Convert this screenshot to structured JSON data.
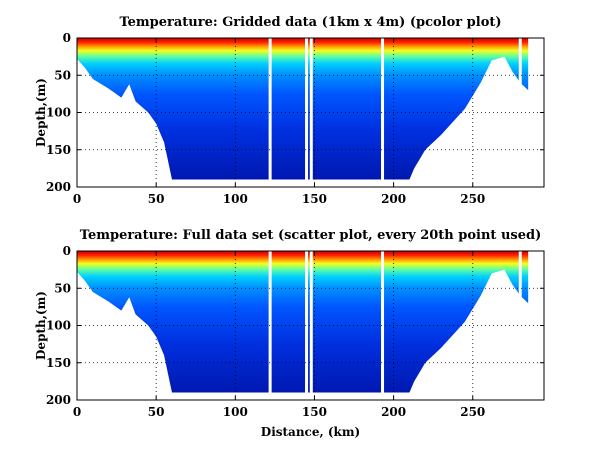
{
  "chart_data": [
    {
      "type": "heatmap",
      "title": "Temperature: Gridded data (1km x 4m) (pcolor plot)",
      "xlabel": "",
      "ylabel": "Depth,(m)",
      "xlim": [
        0,
        295
      ],
      "ylim": [
        200,
        0
      ],
      "xticks": [
        0,
        50,
        100,
        150,
        200,
        250
      ],
      "yticks": [
        0,
        50,
        100,
        150,
        200
      ],
      "grid": true,
      "colormap": "jet",
      "bottom_depth_profile": {
        "distance_km": [
          0,
          5,
          10,
          20,
          28,
          33,
          37,
          45,
          50,
          55,
          58,
          60,
          70,
          100,
          140,
          180,
          200,
          210,
          213,
          220,
          230,
          245,
          255,
          262,
          270,
          275,
          280,
          285
        ],
        "depth_m": [
          28,
          40,
          55,
          68,
          80,
          62,
          85,
          100,
          115,
          140,
          170,
          190,
          190,
          190,
          190,
          190,
          190,
          190,
          175,
          150,
          130,
          95,
          60,
          30,
          25,
          45,
          60,
          70
        ]
      },
      "data_gaps_km": [
        122,
        145,
        148,
        193,
        280
      ]
    },
    {
      "type": "scatter",
      "title": "Temperature: Full data set (scatter plot, every 20th point used)",
      "xlabel": "Distance, (km)",
      "ylabel": "Depth,(m)",
      "xlim": [
        0,
        295
      ],
      "ylim": [
        200,
        0
      ],
      "xticks": [
        0,
        50,
        100,
        150,
        200,
        250
      ],
      "yticks": [
        0,
        50,
        100,
        150,
        200
      ],
      "grid": true,
      "colormap": "jet",
      "bottom_depth_profile": {
        "distance_km": [
          0,
          5,
          10,
          20,
          28,
          33,
          37,
          45,
          50,
          55,
          58,
          60,
          70,
          100,
          140,
          180,
          200,
          210,
          213,
          220,
          230,
          245,
          255,
          262,
          270,
          275,
          280,
          285
        ],
        "depth_m": [
          28,
          40,
          55,
          68,
          80,
          62,
          85,
          100,
          115,
          140,
          170,
          190,
          190,
          190,
          190,
          190,
          190,
          190,
          175,
          150,
          130,
          95,
          60,
          30,
          25,
          45,
          60,
          70
        ]
      },
      "data_gaps_km": [
        122,
        145,
        148,
        193,
        280
      ]
    }
  ]
}
